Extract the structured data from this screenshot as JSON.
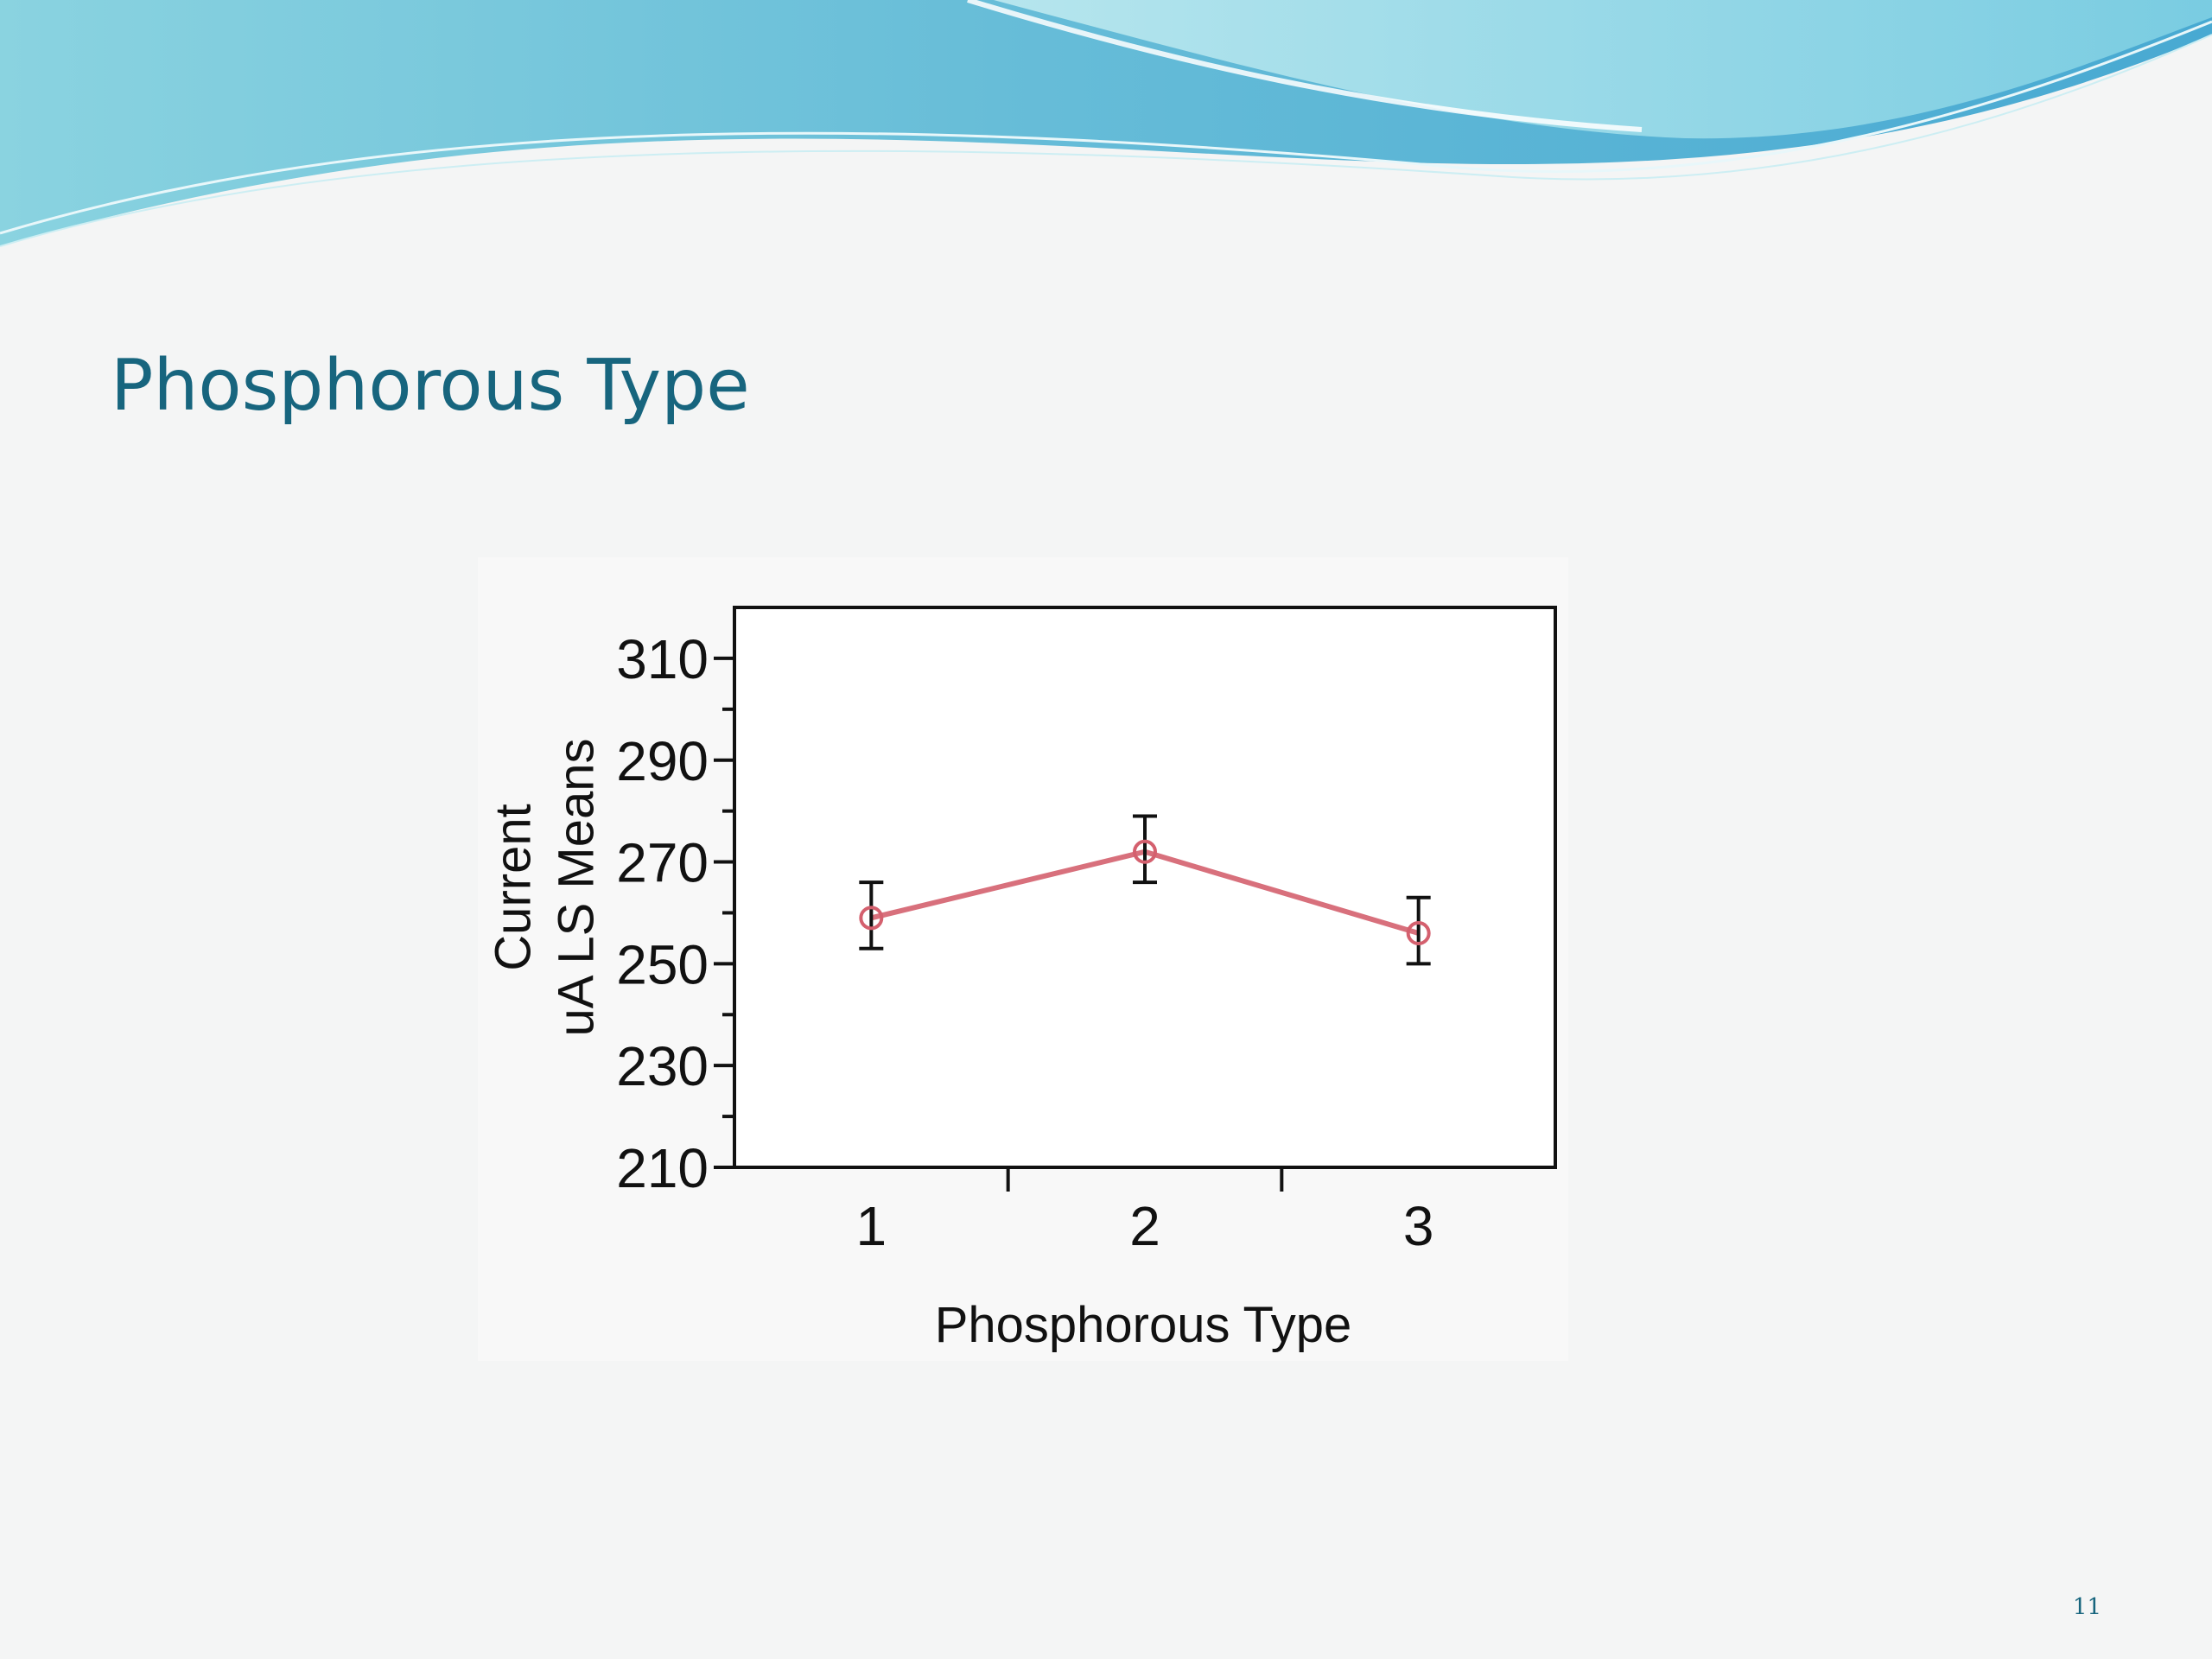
{
  "slide": {
    "title": "Phosphorous Type",
    "page_number": "11"
  },
  "colors": {
    "title": "#17657e",
    "series_line": "#d4606e",
    "error_bar": "#111111",
    "wave_dark": "#5bb8d6",
    "wave_light": "#a9e2ec"
  },
  "chart_data": {
    "type": "line",
    "xlabel": "Phosphorous Type",
    "ylabel_lines": [
      "Current",
      "uA LS Means"
    ],
    "categories": [
      "1",
      "2",
      "3"
    ],
    "series": [
      {
        "values": [
          259,
          272,
          256
        ],
        "error_low": [
          253,
          266,
          250
        ],
        "error_high": [
          266,
          279,
          263
        ]
      }
    ],
    "ylim": [
      210,
      320
    ],
    "y_ticks": [
      210,
      230,
      250,
      270,
      290,
      310
    ],
    "y_minor_ticks": [
      220,
      240,
      260,
      280,
      300
    ],
    "grid": false,
    "legend": "none"
  }
}
